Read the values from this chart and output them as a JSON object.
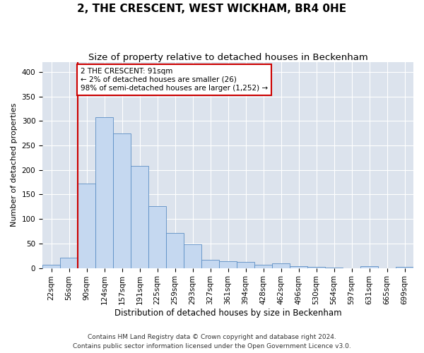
{
  "title": "2, THE CRESCENT, WEST WICKHAM, BR4 0HE",
  "subtitle": "Size of property relative to detached houses in Beckenham",
  "xlabel": "Distribution of detached houses by size in Beckenham",
  "ylabel": "Number of detached properties",
  "footer_line1": "Contains HM Land Registry data © Crown copyright and database right 2024.",
  "footer_line2": "Contains public sector information licensed under the Open Government Licence v3.0.",
  "bar_labels": [
    "22sqm",
    "56sqm",
    "90sqm",
    "124sqm",
    "157sqm",
    "191sqm",
    "225sqm",
    "259sqm",
    "293sqm",
    "327sqm",
    "361sqm",
    "394sqm",
    "428sqm",
    "462sqm",
    "496sqm",
    "530sqm",
    "564sqm",
    "597sqm",
    "631sqm",
    "665sqm",
    "699sqm"
  ],
  "bar_values": [
    7,
    21,
    172,
    308,
    275,
    208,
    126,
    72,
    49,
    16,
    14,
    12,
    7,
    9,
    4,
    3,
    1,
    0,
    4,
    0,
    3
  ],
  "bar_color": "#c5d8f0",
  "bar_edge_color": "#5b8ec4",
  "background_color": "#dce3ed",
  "grid_color": "#ffffff",
  "fig_background": "#ffffff",
  "annotation_box_color": "#cc0000",
  "annotation_text_line1": "2 THE CRESCENT: 91sqm",
  "annotation_text_line2": "← 2% of detached houses are smaller (26)",
  "annotation_text_line3": "98% of semi-detached houses are larger (1,252) →",
  "vline_color": "#cc0000",
  "ylim": [
    0,
    420
  ],
  "yticks": [
    0,
    50,
    100,
    150,
    200,
    250,
    300,
    350,
    400
  ],
  "title_fontsize": 11,
  "subtitle_fontsize": 9.5,
  "xlabel_fontsize": 8.5,
  "ylabel_fontsize": 8,
  "tick_fontsize": 7.5,
  "annotation_fontsize": 7.5,
  "footer_fontsize": 6.5
}
